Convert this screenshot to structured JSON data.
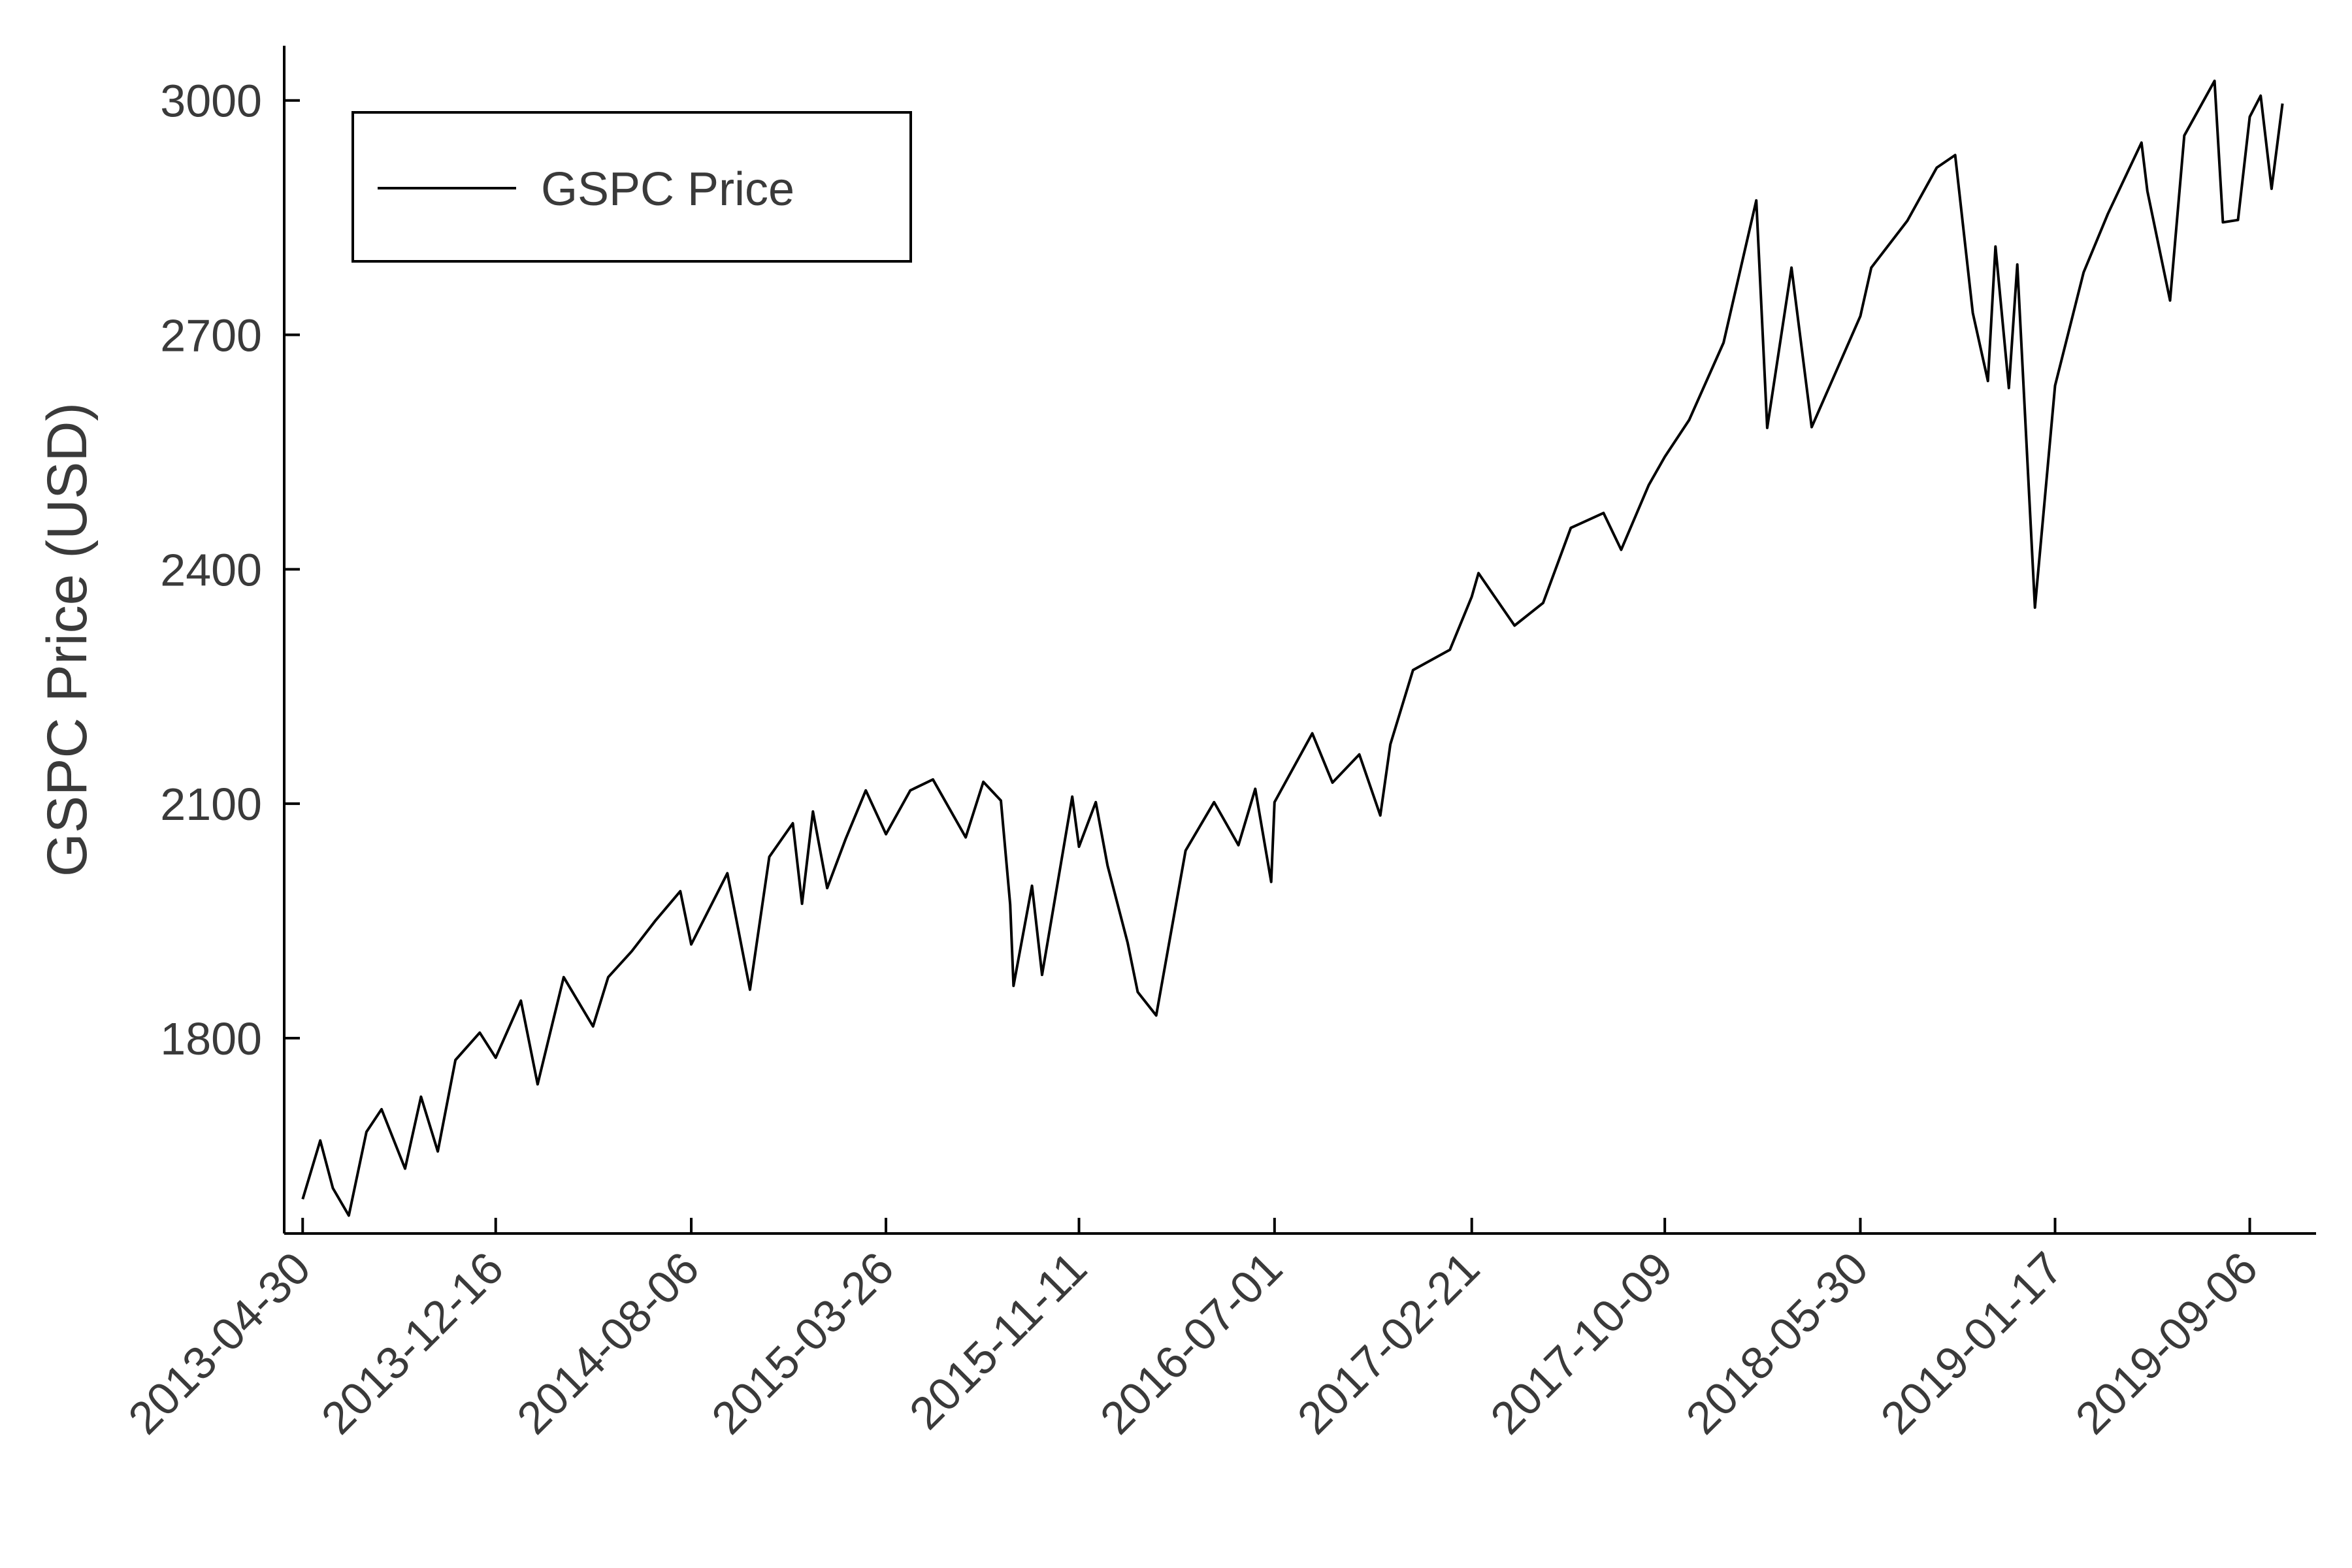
{
  "chart_data": {
    "type": "line",
    "title": "",
    "xlabel": "",
    "ylabel": "GSPC Price (USD)",
    "ylim": [
      1550,
      3070
    ],
    "xlim": [
      "2013-04-08",
      "2019-11-24"
    ],
    "y_ticks": [
      1800,
      2100,
      2400,
      2700,
      3000
    ],
    "x_tick_labels": [
      "2013-04-30",
      "2013-12-16",
      "2014-08-06",
      "2015-03-26",
      "2015-11-11",
      "2016-07-01",
      "2017-02-21",
      "2017-10-09",
      "2018-05-30",
      "2019-01-17",
      "2019-09-06"
    ],
    "grid": false,
    "legend": {
      "position": "top-left",
      "entries": [
        "GSPC Price"
      ]
    },
    "colors": {
      "line": "#000000",
      "axis": "#000000",
      "text": "#3a3a3a"
    },
    "series": [
      {
        "name": "GSPC Price",
        "x": [
          "2013-04-30",
          "2013-05-21",
          "2013-06-05",
          "2013-06-24",
          "2013-07-15",
          "2013-08-02",
          "2013-08-30",
          "2013-09-18",
          "2013-10-08",
          "2013-10-29",
          "2013-11-27",
          "2013-12-16",
          "2014-01-15",
          "2014-02-04",
          "2014-03-07",
          "2014-04-11",
          "2014-04-29",
          "2014-05-27",
          "2014-06-24",
          "2014-07-24",
          "2014-08-06",
          "2014-09-18",
          "2014-10-15",
          "2014-11-07",
          "2014-12-05",
          "2014-12-16",
          "2014-12-29",
          "2015-01-15",
          "2015-02-06",
          "2015-03-02",
          "2015-03-26",
          "2015-04-24",
          "2015-05-21",
          "2015-06-29",
          "2015-07-20",
          "2015-08-10",
          "2015-08-21",
          "2015-08-25",
          "2015-09-16",
          "2015-09-28",
          "2015-11-03",
          "2015-11-11",
          "2015-12-01",
          "2015-12-15",
          "2016-01-08",
          "2016-01-20",
          "2016-02-11",
          "2016-03-17",
          "2016-04-20",
          "2016-05-19",
          "2016-06-08",
          "2016-06-27",
          "2016-07-01",
          "2016-08-15",
          "2016-09-08",
          "2016-10-10",
          "2016-11-04",
          "2016-11-16",
          "2016-12-13",
          "2017-01-26",
          "2017-02-21",
          "2017-03-01",
          "2017-04-13",
          "2017-05-17",
          "2017-06-19",
          "2017-07-28",
          "2017-08-18",
          "2017-09-20",
          "2017-10-09",
          "2017-11-07",
          "2017-12-18",
          "2018-01-26",
          "2018-02-08",
          "2018-03-09",
          "2018-04-02",
          "2018-05-30",
          "2018-06-12",
          "2018-07-25",
          "2018-08-29",
          "2018-09-20",
          "2018-10-11",
          "2018-10-29",
          "2018-11-07",
          "2018-11-23",
          "2018-12-03",
          "2018-12-24",
          "2019-01-17",
          "2019-02-20",
          "2019-03-21",
          "2019-04-30",
          "2019-05-07",
          "2019-06-03",
          "2019-06-20",
          "2019-07-26",
          "2019-08-05",
          "2019-08-23",
          "2019-09-06",
          "2019-09-19",
          "2019-10-02",
          "2019-10-15"
        ],
        "y": [
          1594,
          1669,
          1608,
          1573,
          1680,
          1709,
          1633,
          1725,
          1655,
          1772,
          1807,
          1775,
          1848,
          1741,
          1878,
          1815,
          1878,
          1911,
          1950,
          1988,
          1920,
          2011,
          1862,
          2032,
          2075,
          1972,
          2090,
          1992,
          2055,
          2117,
          2061,
          2117,
          2131,
          2057,
          2128,
          2104,
          1971,
          1867,
          1995,
          1881,
          2109,
          2045,
          2102,
          2021,
          1922,
          1859,
          1829,
          2040,
          2102,
          2047,
          2119,
          2000,
          2102,
          2190,
          2127,
          2163,
          2085,
          2176,
          2271,
          2297,
          2365,
          2395,
          2328,
          2357,
          2453,
          2472,
          2425,
          2508,
          2544,
          2591,
          2690,
          2872,
          2581,
          2786,
          2582,
          2724,
          2786,
          2846,
          2914,
          2930,
          2728,
          2641,
          2813,
          2632,
          2790,
          2351,
          2635,
          2780,
          2855,
          2946,
          2884,
          2744,
          2955,
          3025,
          2844,
          2847,
          2979,
          3006,
          2887,
          2996
        ]
      }
    ]
  }
}
